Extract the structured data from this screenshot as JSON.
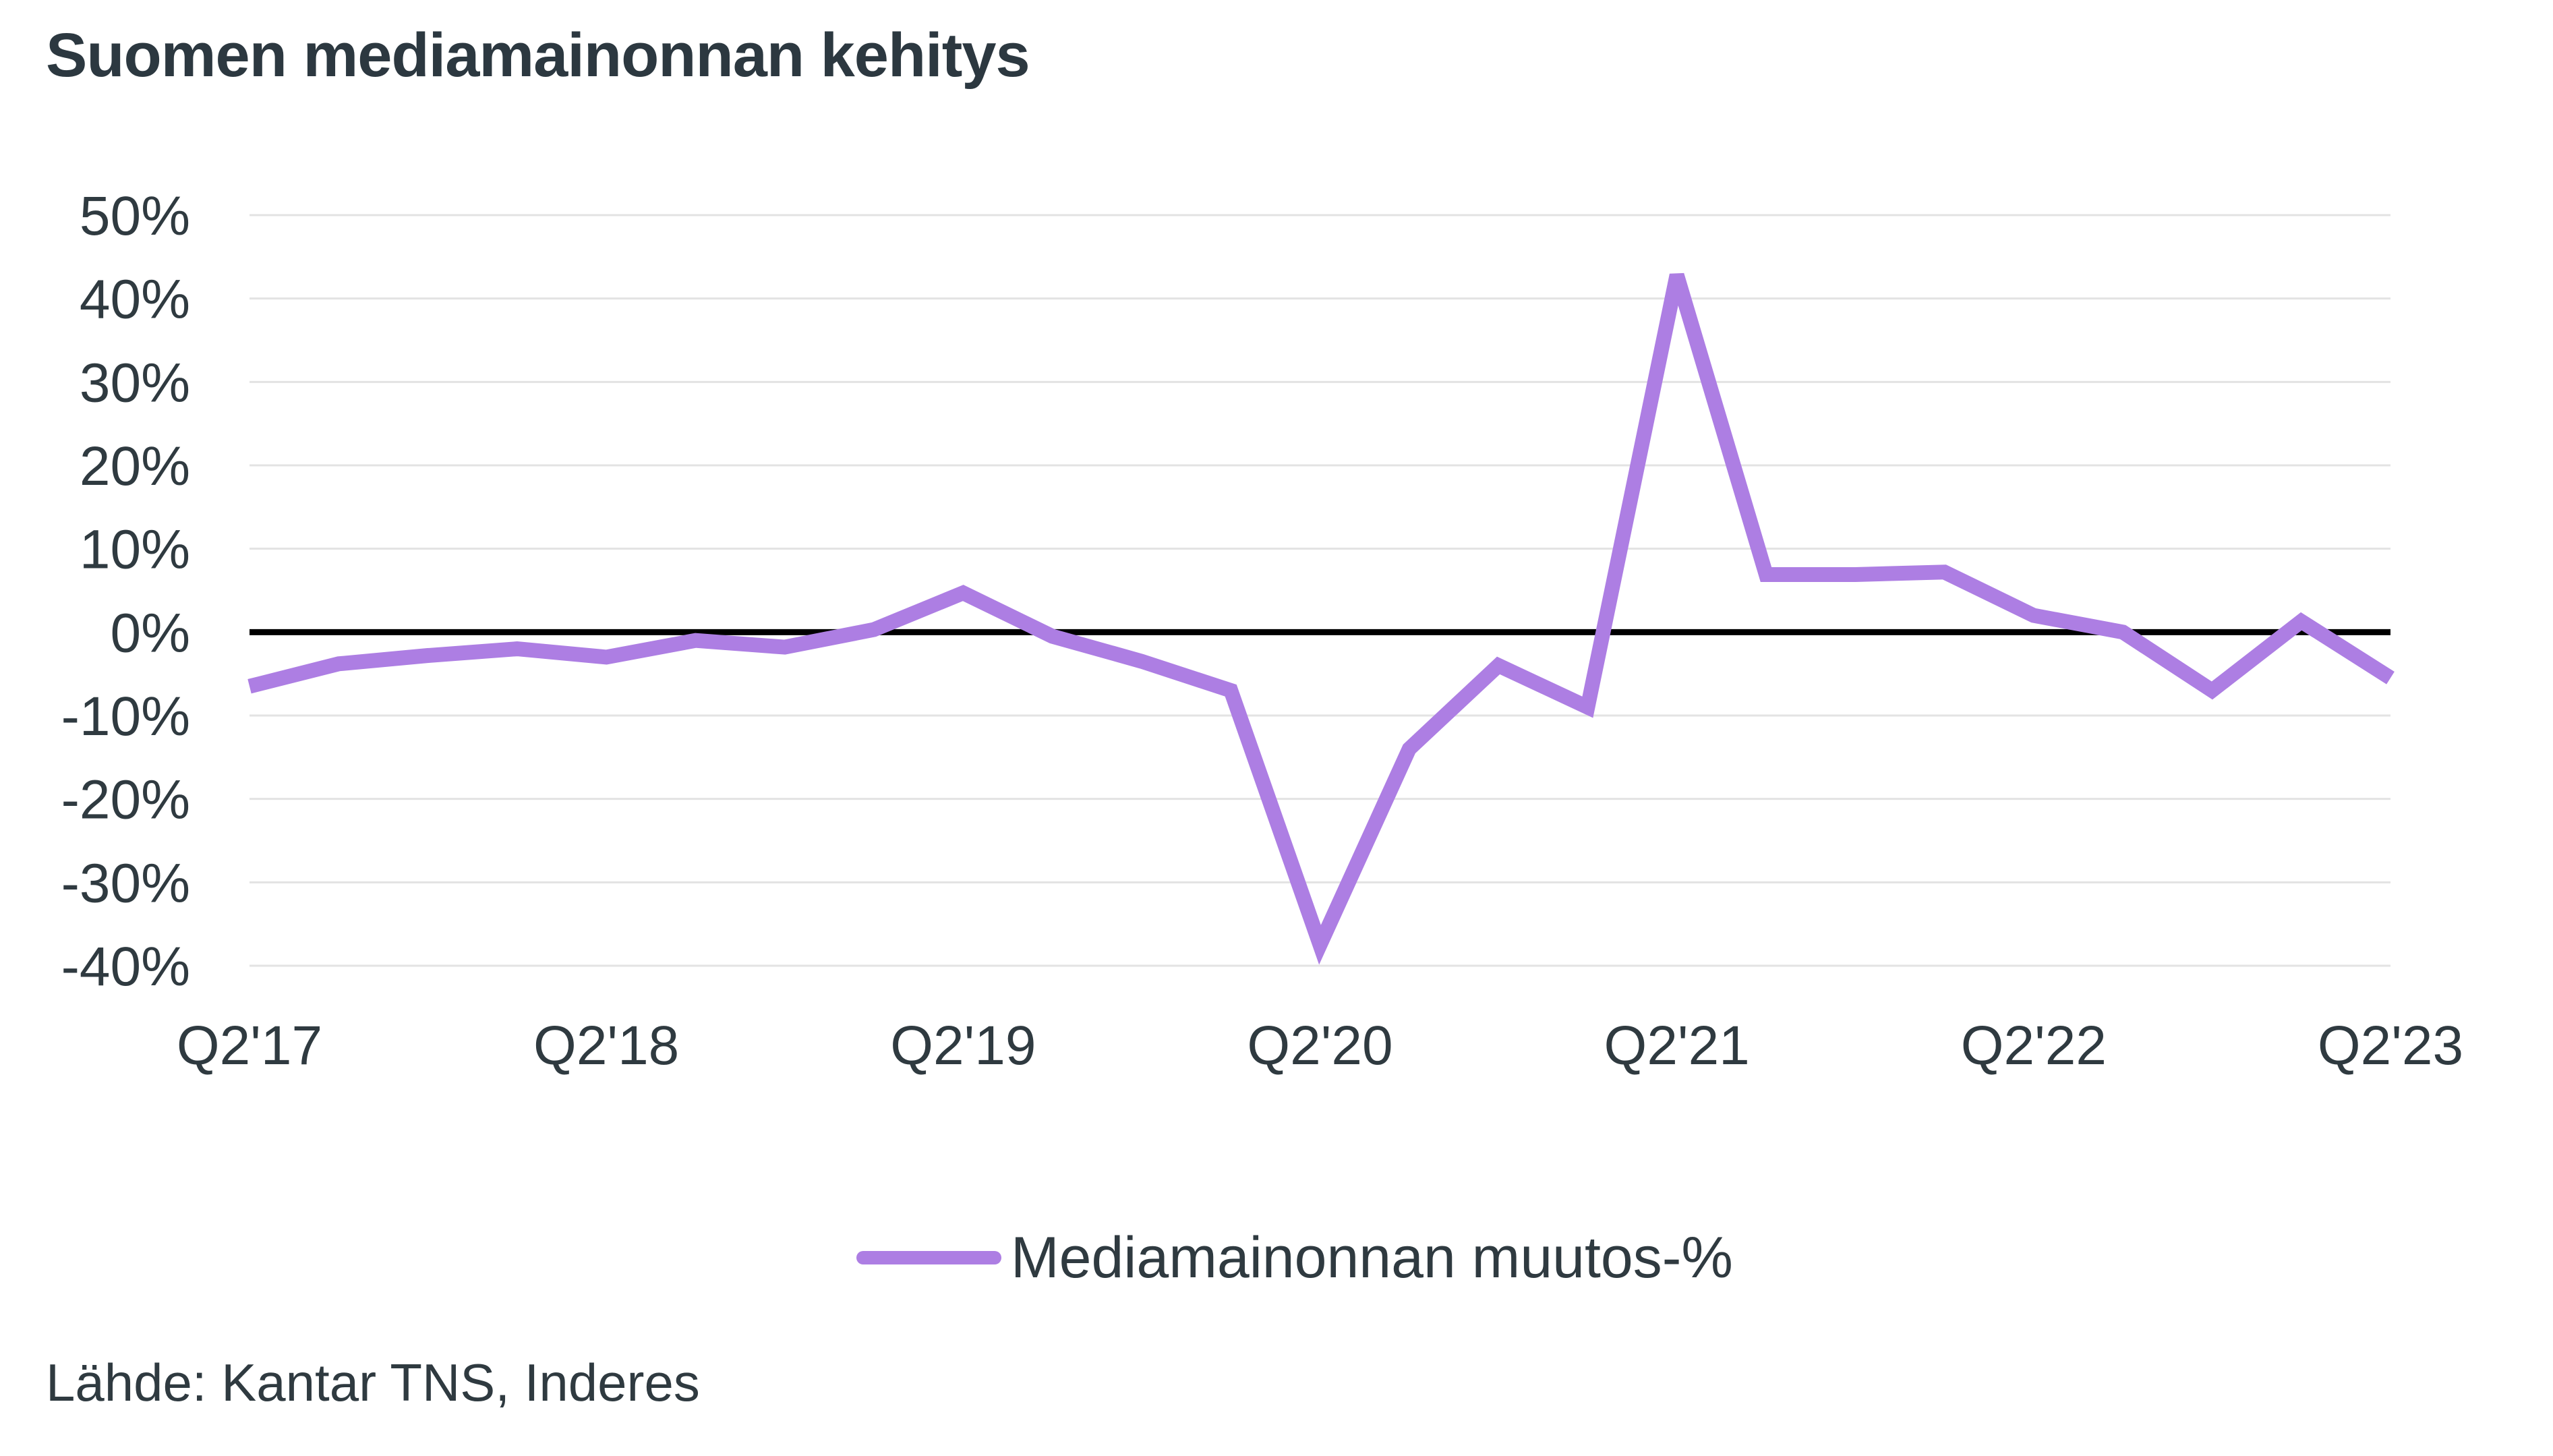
{
  "title": "Suomen mediamainonnan kehitys",
  "source": "Lähde: Kantar TNS, Inderes",
  "colors": {
    "series": "#ad7ee3",
    "zero_line": "#000000",
    "grid": "#e3e3e3",
    "text": "#2f3a40"
  },
  "chart_data": {
    "type": "line",
    "title": "Suomen mediamainonnan kehitys",
    "xlabel": "",
    "ylabel": "",
    "ylim": [
      -40,
      50
    ],
    "y_ticks": [
      "50%",
      "40%",
      "30%",
      "20%",
      "10%",
      "0%",
      "-10%",
      "-20%",
      "-30%",
      "-40%"
    ],
    "y_tick_values": [
      50,
      40,
      30,
      20,
      10,
      0,
      -10,
      -20,
      -30,
      -40
    ],
    "x_tick_labels": [
      "Q2'17",
      "Q2'18",
      "Q2'19",
      "Q2'20",
      "Q2'21",
      "Q2'22",
      "Q2'23"
    ],
    "x": [
      "Q2'17",
      "Q3'17",
      "Q4'17",
      "Q1'18",
      "Q2'18",
      "Q3'18",
      "Q4'18",
      "Q1'19",
      "Q2'19",
      "Q3'19",
      "Q4'19",
      "Q1'20",
      "Q2'20",
      "Q3'20",
      "Q4'20",
      "Q1'21",
      "Q2'21",
      "Q3'21",
      "Q4'21",
      "Q1'22",
      "Q2'22",
      "Q3'22",
      "Q4'22",
      "Q1'23",
      "Q2'23"
    ],
    "grid": true,
    "legend_position": "bottom",
    "series": [
      {
        "name": "Mediamainonnan muutos-%",
        "values": [
          -6.5,
          -3.8,
          -2.8,
          -2.0,
          -3.0,
          -1.0,
          -1.8,
          0.3,
          4.7,
          -0.5,
          -3.5,
          -7.0,
          -37.5,
          -14.0,
          -4.0,
          -9.0,
          42.8,
          6.9,
          6.9,
          7.2,
          2.0,
          0.0,
          -7.0,
          1.3,
          -5.5
        ]
      }
    ]
  }
}
